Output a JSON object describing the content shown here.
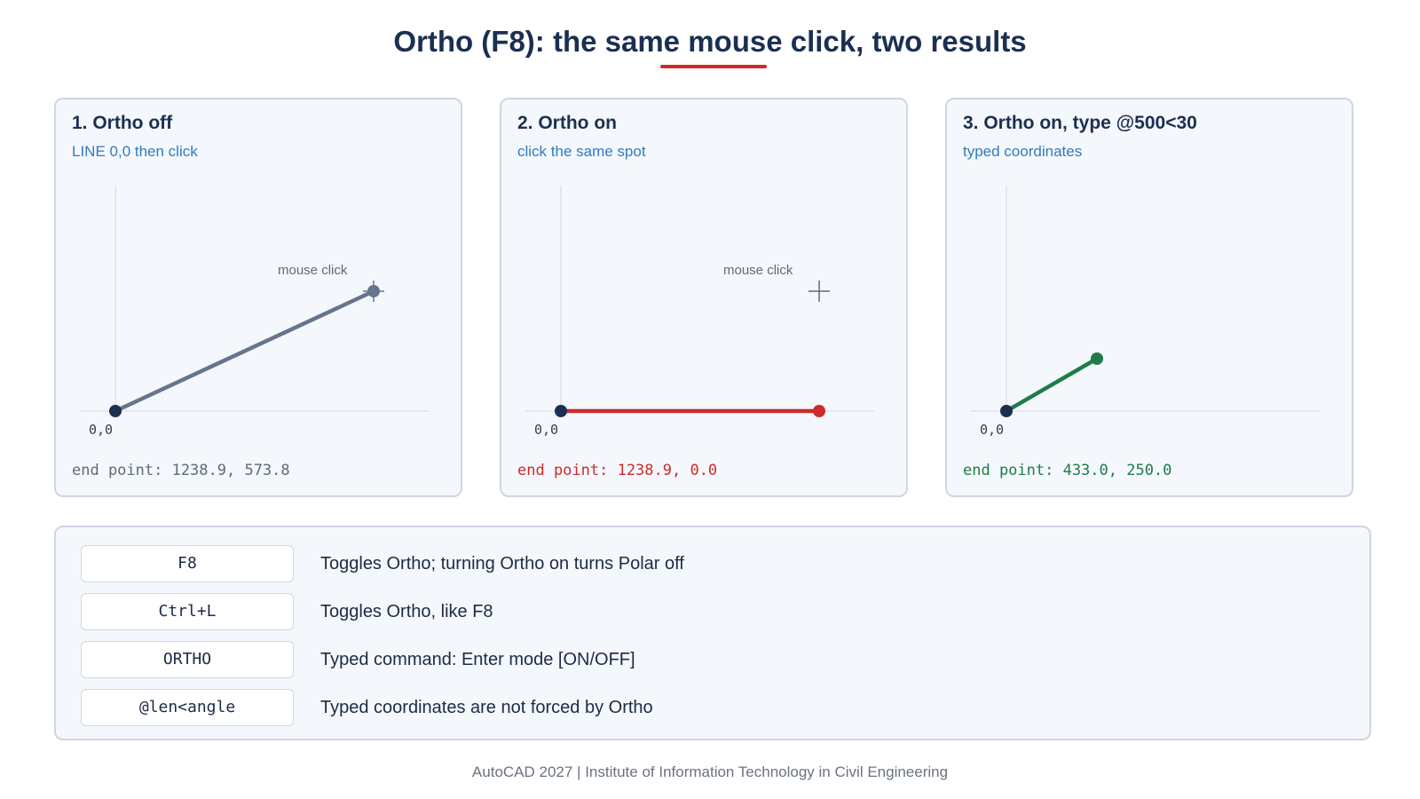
{
  "title": "Ortho (F8): the same mouse click, two results",
  "colors": {
    "navy": "#1b2f52",
    "slate_line": "#66758c",
    "red": "#cc2b2b",
    "green": "#1e7d47",
    "accent_blue": "#2f7cc0"
  },
  "panels": [
    {
      "title": "1. Ortho off",
      "subtitle": "LINE 0,0 then click",
      "origin_label": "0,0",
      "click_label": "mouse click",
      "end_point": "end point: 1238.9, 573.8"
    },
    {
      "title": "2. Ortho on",
      "subtitle": "click the same spot",
      "origin_label": "0,0",
      "click_label": "mouse click",
      "end_point": "end point: 1238.9, 0.0"
    },
    {
      "title": "3. Ortho on, type @500<30",
      "subtitle": "typed coordinates",
      "origin_label": "0,0",
      "end_point": "end point: 433.0, 250.0"
    }
  ],
  "commands": [
    {
      "key": "F8",
      "description": "Toggles Ortho; turning Ortho on turns Polar off"
    },
    {
      "key": "Ctrl+L",
      "description": "Toggles Ortho, like F8"
    },
    {
      "key": "ORTHO",
      "description": "Typed command: Enter mode [ON/OFF]"
    },
    {
      "key": "@len<angle",
      "description": "Typed coordinates are not forced by Ortho"
    }
  ],
  "footer": "AutoCAD 2027 | Institute of Information Technology in Civil Engineering"
}
